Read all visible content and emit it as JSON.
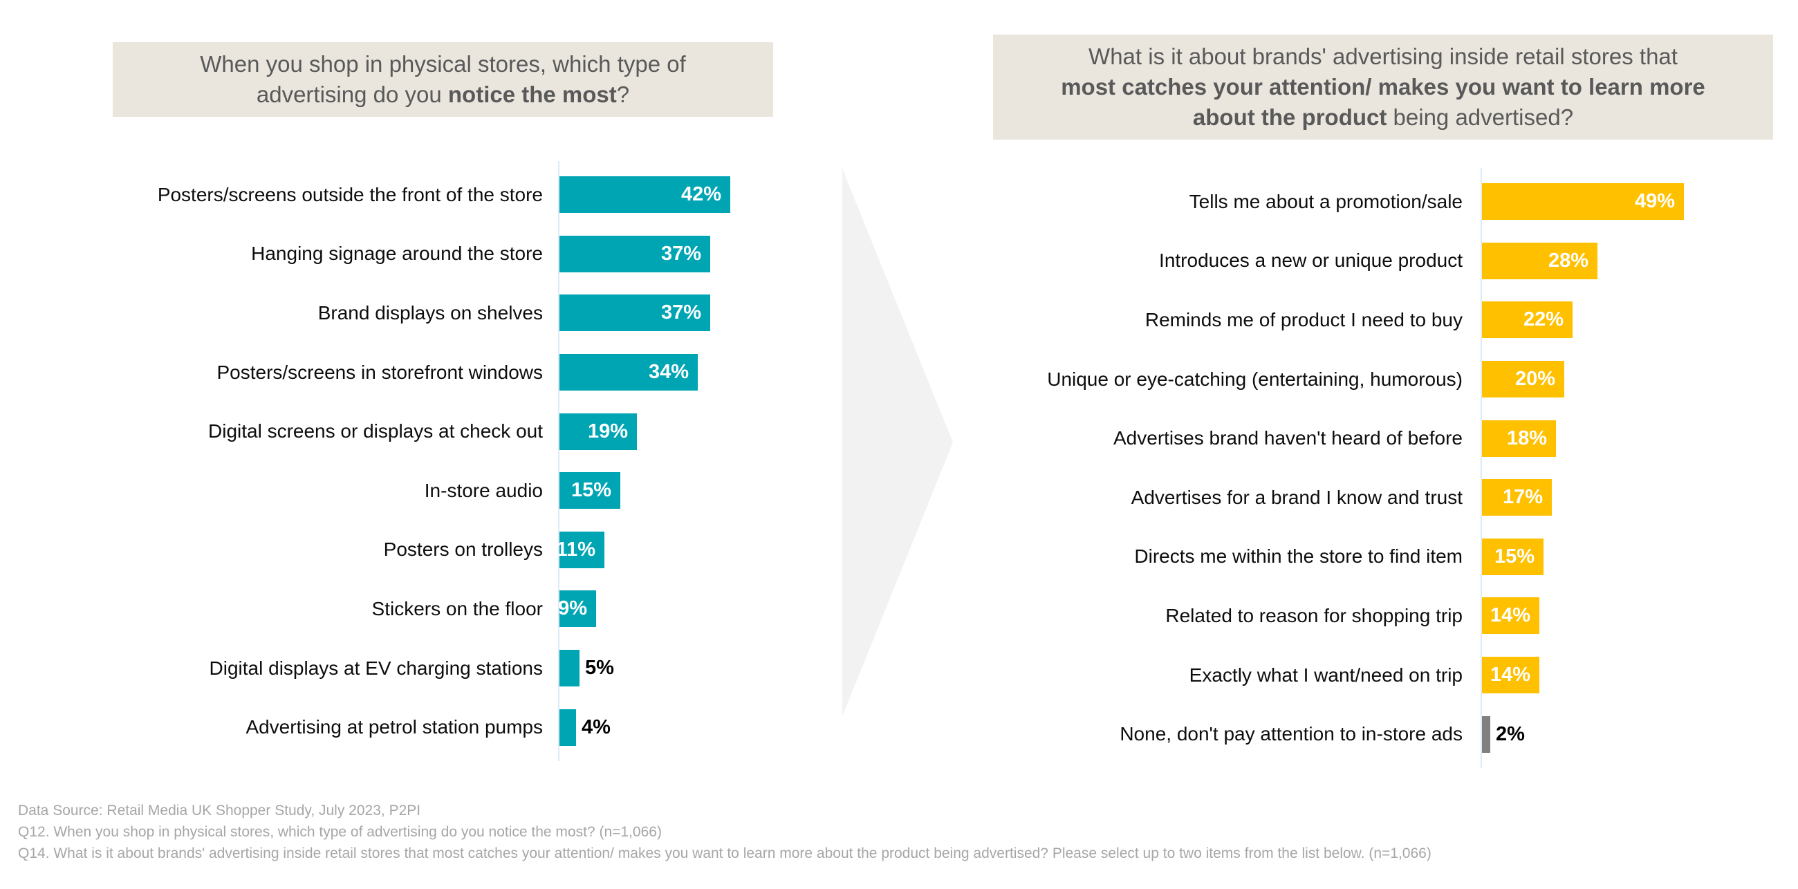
{
  "colors": {
    "background": "#FFFFFF",
    "teal_bar": "#00A5B4",
    "yellow_bar": "#FFC000",
    "gray_bar": "#808080",
    "title_bg": "#EAE6DE",
    "title_text": "#595959",
    "footer_text": "#A6A6A6",
    "axis_line": "#DDEBF6",
    "arrow": "#F2F2F2",
    "label_text": "#0D0D0D",
    "value_text_inside": "#FFFFFF",
    "value_text_outside": "#000000"
  },
  "chart_data": [
    {
      "type": "bar",
      "orientation": "horizontal",
      "title": "When you shop in physical stores, which type of advertising do you notice the most?",
      "title_lines": [
        [
          {
            "text": "When you shop in physical stores, which type of",
            "bold": false
          }
        ],
        [
          {
            "text": "advertising do you ",
            "bold": false
          },
          {
            "text": "notice the most",
            "bold": true
          },
          {
            "text": "?",
            "bold": false
          }
        ]
      ],
      "categories": [
        "Posters/screens outside the front of the store",
        "Hanging signage around the store",
        "Brand displays on shelves",
        "Posters/screens in storefront windows",
        "Digital screens or displays at check out",
        "In-store audio",
        "Posters on trolleys",
        "Stickers on the floor",
        "Digital displays at EV charging stations",
        "Advertising at petrol station pumps"
      ],
      "values": [
        42,
        37,
        37,
        34,
        19,
        15,
        11,
        9,
        5,
        4
      ],
      "value_suffix": "%",
      "bar_color": "#00A5B4",
      "special_colors": {},
      "xlim": [
        0,
        50
      ],
      "grid": false,
      "legend": false,
      "value_labels": "at bar end, white inside bar; black outside for small bars"
    },
    {
      "type": "bar",
      "orientation": "horizontal",
      "title": "What is it about brands' advertising inside retail stores that most catches your attention/ makes you want to learn more about the product being advertised?",
      "title_lines": [
        [
          {
            "text": "What is it about brands' advertising inside retail stores that",
            "bold": false
          }
        ],
        [
          {
            "text": "most catches your attention/ makes you want to learn more",
            "bold": true
          }
        ],
        [
          {
            "text": "about the product",
            "bold": true
          },
          {
            "text": " being advertised?",
            "bold": false
          }
        ]
      ],
      "categories": [
        "Tells me about a promotion/sale",
        "Introduces a new or unique product",
        "Reminds me of product I need to buy",
        "Unique or eye-catching (entertaining, humorous)",
        "Advertises brand haven't heard of before",
        "Advertises for a brand I know and trust",
        "Directs me within the store to find item",
        "Related to reason for shopping trip",
        "Exactly what I want/need on trip",
        "None, don't pay attention to in-store ads"
      ],
      "values": [
        49,
        28,
        22,
        20,
        18,
        17,
        15,
        14,
        14,
        2
      ],
      "value_suffix": "%",
      "bar_color": "#FFC000",
      "special_colors": {
        "None, don't pay attention to in-store ads": "#808080"
      },
      "xlim": [
        0,
        55
      ],
      "grid": false,
      "legend": false,
      "value_labels": "at bar end, white inside bar; black outside for small bars"
    }
  ],
  "footer": {
    "lines": [
      "Data Source: Retail Media UK Shopper Study, July 2023, P2PI",
      "Q12. When you shop in physical stores, which type of advertising do you notice the most? (n=1,066)",
      "Q14. What is it about brands' advertising inside retail stores that most catches your attention/ makes you want to learn more about the product being advertised? Please select up to two items from the list below. (n=1,066)"
    ]
  }
}
